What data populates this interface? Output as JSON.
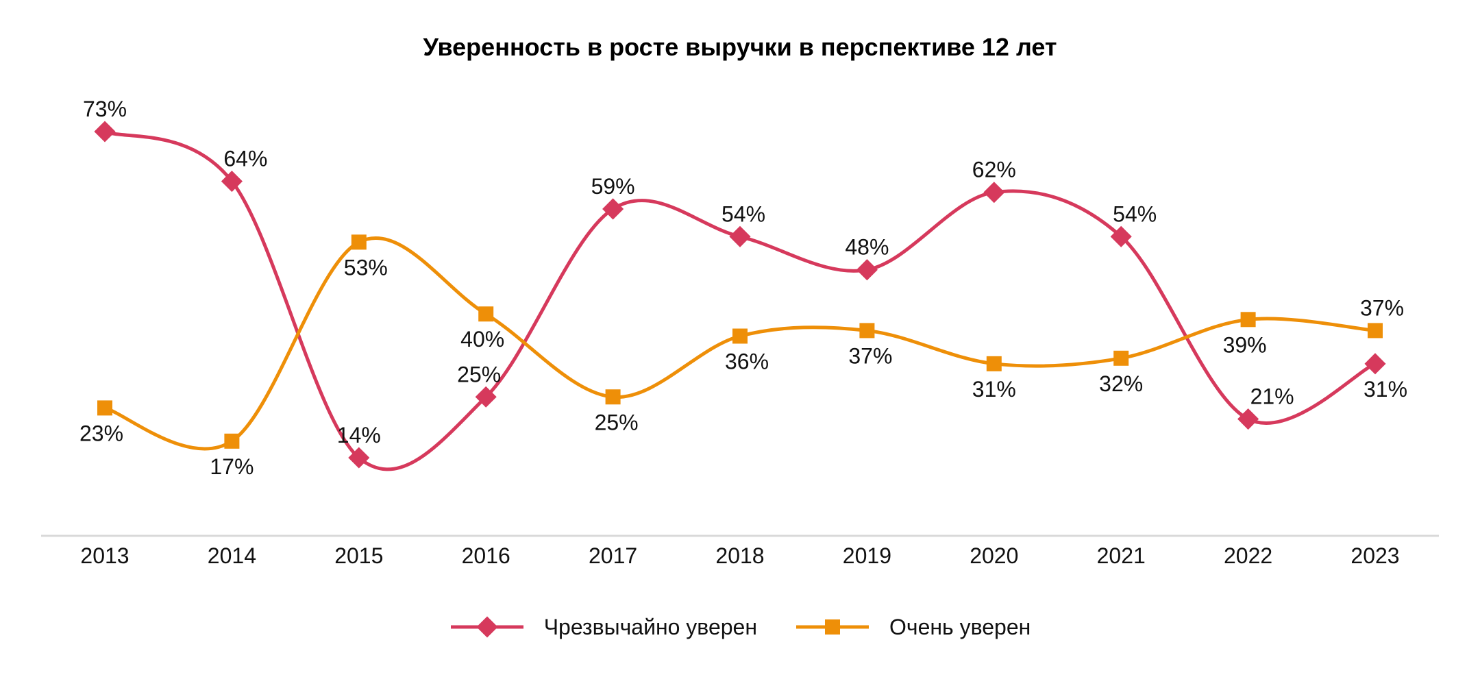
{
  "chart_data": {
    "type": "line",
    "title": "Уверенность в росте выручки в перспективе 12 лет",
    "xlabel": "",
    "ylabel": "",
    "categories": [
      "2013",
      "2014",
      "2015",
      "2016",
      "2017",
      "2018",
      "2019",
      "2020",
      "2021",
      "2022",
      "2023"
    ],
    "ylim": [
      0,
      80
    ],
    "grid": false,
    "legend_position": "bottom",
    "series": [
      {
        "name": "Чрезвычайно уверен",
        "marker": "diamond",
        "color": "#D6395C",
        "values": [
          73,
          64,
          14,
          25,
          59,
          54,
          48,
          62,
          54,
          21,
          31
        ],
        "labels": [
          "73%",
          "64%",
          "14%",
          "25%",
          "59%",
          "54%",
          "48%",
          "62%",
          "54%",
          "21%",
          "31%"
        ]
      },
      {
        "name": "Очень уверен",
        "marker": "square",
        "color": "#EE8F08",
        "values": [
          23,
          17,
          53,
          40,
          25,
          36,
          37,
          31,
          32,
          39,
          37
        ],
        "labels": [
          "23%",
          "17%",
          "53%",
          "40%",
          "25%",
          "36%",
          "37%",
          "31%",
          "32%",
          "39%",
          "37%"
        ]
      }
    ]
  }
}
